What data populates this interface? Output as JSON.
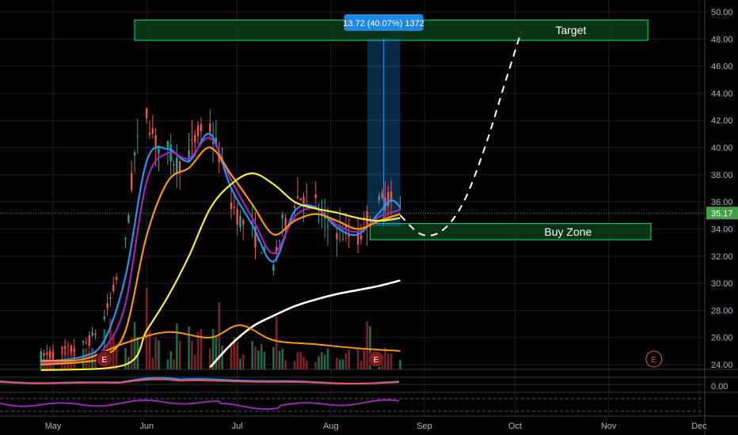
{
  "chart_data": {
    "type": "candlestick",
    "title": "",
    "x_axis": {
      "tick_labels": [
        "May",
        "Jun",
        "Jul",
        "Aug",
        "Sep",
        "Oct",
        "Nov",
        "Dec"
      ]
    },
    "y_axis": {
      "range": [
        23,
        51
      ],
      "tick_labels": [
        "50.00",
        "48.00",
        "46.00",
        "44.00",
        "42.00",
        "40.00",
        "38.00",
        "36.00",
        "34.00",
        "32.00",
        "30.00",
        "28.00",
        "26.00",
        "24.00"
      ],
      "grid": true
    },
    "last_price": {
      "label": "35.17",
      "value": 35.17,
      "color": "#43a047"
    },
    "price_path": [
      {
        "date": "2020-04-27",
        "price": 24.6
      },
      {
        "date": "2020-05-04",
        "price": 24.9
      },
      {
        "date": "2020-05-11",
        "price": 25.4
      },
      {
        "date": "2020-05-14",
        "price": 26.0
      },
      {
        "date": "2020-05-18",
        "price": 27.5
      },
      {
        "date": "2020-05-21",
        "price": 29.5
      },
      {
        "date": "2020-05-25",
        "price": 33.0
      },
      {
        "date": "2020-05-28",
        "price": 39.5
      },
      {
        "date": "2020-06-01",
        "price": 42.5
      },
      {
        "date": "2020-06-04",
        "price": 40.3
      },
      {
        "date": "2020-06-08",
        "price": 39.8
      },
      {
        "date": "2020-06-11",
        "price": 38.8
      },
      {
        "date": "2020-06-15",
        "price": 39.5
      },
      {
        "date": "2020-06-18",
        "price": 41.0
      },
      {
        "date": "2020-06-22",
        "price": 41.4
      },
      {
        "date": "2020-06-25",
        "price": 39.5
      },
      {
        "date": "2020-06-29",
        "price": 36.0
      },
      {
        "date": "2020-07-02",
        "price": 34.6
      },
      {
        "date": "2020-07-06",
        "price": 33.8
      },
      {
        "date": "2020-07-09",
        "price": 32.6
      },
      {
        "date": "2020-07-13",
        "price": 31.2
      },
      {
        "date": "2020-07-16",
        "price": 34.3
      },
      {
        "date": "2020-07-20",
        "price": 36.2
      },
      {
        "date": "2020-07-23",
        "price": 36.5
      },
      {
        "date": "2020-07-27",
        "price": 35.8
      },
      {
        "date": "2020-07-30",
        "price": 34.4
      },
      {
        "date": "2020-08-03",
        "price": 33.9
      },
      {
        "date": "2020-08-06",
        "price": 33.6
      },
      {
        "date": "2020-08-10",
        "price": 33.2
      },
      {
        "date": "2020-08-13",
        "price": 34.7
      },
      {
        "date": "2020-08-17",
        "price": 35.8
      },
      {
        "date": "2020-08-20",
        "price": 36.3
      },
      {
        "date": "2020-08-24",
        "price": 35.2
      }
    ],
    "moving_averages": [
      {
        "color": "#2196f3",
        "points": [
          {
            "date": "2020-04-27",
            "price": 24.2
          },
          {
            "date": "2020-05-11",
            "price": 24.6
          },
          {
            "date": "2020-05-18",
            "price": 25.8
          },
          {
            "date": "2020-05-25",
            "price": 30.5
          },
          {
            "date": "2020-06-01",
            "price": 39.0
          },
          {
            "date": "2020-06-08",
            "price": 39.9
          },
          {
            "date": "2020-06-15",
            "price": 39.0
          },
          {
            "date": "2020-06-22",
            "price": 41.0
          },
          {
            "date": "2020-06-29",
            "price": 37.0
          },
          {
            "date": "2020-07-06",
            "price": 34.3
          },
          {
            "date": "2020-07-13",
            "price": 31.6
          },
          {
            "date": "2020-07-20",
            "price": 35.3
          },
          {
            "date": "2020-07-27",
            "price": 35.6
          },
          {
            "date": "2020-08-03",
            "price": 34.1
          },
          {
            "date": "2020-08-10",
            "price": 33.6
          },
          {
            "date": "2020-08-17",
            "price": 35.2
          },
          {
            "date": "2020-08-21",
            "price": 36.1
          },
          {
            "date": "2020-08-24",
            "price": 35.6
          }
        ]
      },
      {
        "color": "#9c27b0",
        "points": [
          {
            "date": "2020-04-27",
            "price": 24.1
          },
          {
            "date": "2020-05-11",
            "price": 24.4
          },
          {
            "date": "2020-05-18",
            "price": 25.2
          },
          {
            "date": "2020-05-25",
            "price": 28.5
          },
          {
            "date": "2020-06-01",
            "price": 37.5
          },
          {
            "date": "2020-06-08",
            "price": 39.6
          },
          {
            "date": "2020-06-15",
            "price": 39.2
          },
          {
            "date": "2020-06-22",
            "price": 40.7
          },
          {
            "date": "2020-06-29",
            "price": 37.6
          },
          {
            "date": "2020-07-06",
            "price": 34.8
          },
          {
            "date": "2020-07-13",
            "price": 32.2
          },
          {
            "date": "2020-07-20",
            "price": 34.9
          },
          {
            "date": "2020-07-27",
            "price": 35.5
          },
          {
            "date": "2020-08-03",
            "price": 34.3
          },
          {
            "date": "2020-08-10",
            "price": 33.8
          },
          {
            "date": "2020-08-17",
            "price": 34.9
          },
          {
            "date": "2020-08-24",
            "price": 35.4
          }
        ]
      },
      {
        "color": "#ff9800",
        "points": [
          {
            "date": "2020-04-27",
            "price": 24.0
          },
          {
            "date": "2020-05-11",
            "price": 24.2
          },
          {
            "date": "2020-05-18",
            "price": 24.6
          },
          {
            "date": "2020-05-25",
            "price": 26.5
          },
          {
            "date": "2020-06-01",
            "price": 33.5
          },
          {
            "date": "2020-06-08",
            "price": 37.5
          },
          {
            "date": "2020-06-15",
            "price": 38.5
          },
          {
            "date": "2020-06-22",
            "price": 40.0
          },
          {
            "date": "2020-06-29",
            "price": 38.0
          },
          {
            "date": "2020-07-06",
            "price": 35.8
          },
          {
            "date": "2020-07-13",
            "price": 33.6
          },
          {
            "date": "2020-07-20",
            "price": 34.6
          },
          {
            "date": "2020-07-27",
            "price": 35.1
          },
          {
            "date": "2020-08-03",
            "price": 34.6
          },
          {
            "date": "2020-08-10",
            "price": 34.0
          },
          {
            "date": "2020-08-17",
            "price": 34.6
          },
          {
            "date": "2020-08-24",
            "price": 35.1
          }
        ]
      },
      {
        "color": "#ffeb3b",
        "points": [
          {
            "date": "2020-04-27",
            "price": 23.6
          },
          {
            "date": "2020-05-25",
            "price": 24.0
          },
          {
            "date": "2020-06-01",
            "price": 26.5
          },
          {
            "date": "2020-06-08",
            "price": 29.0
          },
          {
            "date": "2020-06-15",
            "price": 32.0
          },
          {
            "date": "2020-06-22",
            "price": 35.5
          },
          {
            "date": "2020-06-29",
            "price": 37.3
          },
          {
            "date": "2020-07-06",
            "price": 38.1
          },
          {
            "date": "2020-07-13",
            "price": 37.3
          },
          {
            "date": "2020-07-20",
            "price": 36.0
          },
          {
            "date": "2020-07-27",
            "price": 35.5
          },
          {
            "date": "2020-08-03",
            "price": 35.2
          },
          {
            "date": "2020-08-10",
            "price": 34.8
          },
          {
            "date": "2020-08-17",
            "price": 34.6
          },
          {
            "date": "2020-08-24",
            "price": 34.8
          }
        ]
      },
      {
        "color": "#ffffff",
        "points": [
          {
            "date": "2020-06-22",
            "price": 23.8
          },
          {
            "date": "2020-06-29",
            "price": 25.5
          },
          {
            "date": "2020-07-06",
            "price": 26.8
          },
          {
            "date": "2020-07-13",
            "price": 27.6
          },
          {
            "date": "2020-07-20",
            "price": 28.3
          },
          {
            "date": "2020-07-27",
            "price": 28.8
          },
          {
            "date": "2020-08-03",
            "price": 29.2
          },
          {
            "date": "2020-08-10",
            "price": 29.5
          },
          {
            "date": "2020-08-17",
            "price": 29.8
          },
          {
            "date": "2020-08-24",
            "price": 30.2
          }
        ]
      }
    ],
    "volume_average": {
      "color": "#ff9800",
      "points": [
        {
          "date": "2020-04-27",
          "price": 24.3
        },
        {
          "date": "2020-05-11",
          "price": 24.4
        },
        {
          "date": "2020-05-25",
          "price": 25.6
        },
        {
          "date": "2020-06-08",
          "price": 26.4
        },
        {
          "date": "2020-06-22",
          "price": 26.0
        },
        {
          "date": "2020-07-02",
          "price": 26.9
        },
        {
          "date": "2020-07-13",
          "price": 25.8
        },
        {
          "date": "2020-07-27",
          "price": 25.5
        },
        {
          "date": "2020-08-10",
          "price": 25.2
        },
        {
          "date": "2020-08-24",
          "price": 25.0
        }
      ]
    },
    "projection": {
      "style": "dashed",
      "color": "#ffffff",
      "points": [
        {
          "date": "2020-08-24",
          "price": 35.0
        },
        {
          "date": "2020-08-31",
          "price": 33.6
        },
        {
          "date": "2020-09-07",
          "price": 33.9
        },
        {
          "date": "2020-09-14",
          "price": 36.0
        },
        {
          "date": "2020-09-21",
          "price": 40.0
        },
        {
          "date": "2020-09-28",
          "price": 45.0
        },
        {
          "date": "2020-10-03",
          "price": 48.5
        }
      ]
    },
    "zones": [
      {
        "label": "Target",
        "from_date": "2020-05-28",
        "to_date": "2020-11-14",
        "low": 47.9,
        "high": 49.4,
        "color": "#00e676"
      },
      {
        "label": "Buy Zone",
        "from_date": "2020-08-14",
        "to_date": "2020-11-15",
        "low": 33.2,
        "high": 34.4,
        "color": "#00e676"
      }
    ],
    "measure": {
      "label": "13.72 (40.07%) 1372",
      "from_date": "2020-08-13",
      "to_date": "2020-08-24",
      "low": 34.2,
      "high": 48.0,
      "color": "#2196f3"
    },
    "earnings_markers": [
      {
        "label": "E",
        "date": "2020-05-18",
        "color": "#ffffff",
        "fill": "#7f1d1d"
      },
      {
        "label": "E",
        "date": "2020-08-16",
        "color": "#ffffff",
        "fill": "#7f1d1d"
      },
      {
        "label": "E",
        "date": "2020-11-16",
        "color": "#ef5350",
        "fill": "#000000"
      }
    ],
    "sub_panels": [
      {
        "tick_labels": [
          "0.00"
        ],
        "series_colors": [
          "#2196f3",
          "#ef5350"
        ]
      },
      {
        "tick_labels": [],
        "series_colors": [
          "#9c27b0"
        ]
      }
    ]
  }
}
